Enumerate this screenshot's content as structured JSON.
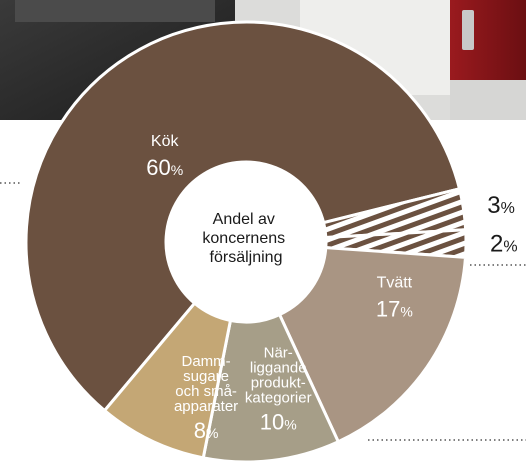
{
  "colors": {
    "kok": "#6b5140",
    "tvatt": "#a99583",
    "narliggande": "#a69e88",
    "damm": "#c4a775",
    "hatch": "#6b5140",
    "hole": "#ffffff",
    "outline": "#ffffff"
  },
  "center_label": [
    "Andel av",
    "koncernens",
    "försäljning"
  ],
  "chart_data": {
    "type": "pie",
    "title": "",
    "slices": [
      {
        "key": "kok",
        "label_lines": [
          "Kök"
        ],
        "value": 60,
        "value_text": "60",
        "unit": "%"
      },
      {
        "key": "hatch3",
        "label_lines": [],
        "value": 3,
        "value_text": "3",
        "unit": "%"
      },
      {
        "key": "hatch2",
        "label_lines": [],
        "value": 2,
        "value_text": "2",
        "unit": "%"
      },
      {
        "key": "tvatt",
        "label_lines": [
          "Tvätt"
        ],
        "value": 17,
        "value_text": "17",
        "unit": "%"
      },
      {
        "key": "narliggande",
        "label_lines": [
          "När-",
          "liggande",
          "produkt-",
          "kategorier"
        ],
        "value": 10,
        "value_text": "10",
        "unit": "%"
      },
      {
        "key": "damm",
        "label_lines": [
          "Damm-",
          "sugare",
          "och små-",
          "apparater"
        ],
        "value": 8,
        "value_text": "8",
        "unit": "%"
      }
    ]
  }
}
